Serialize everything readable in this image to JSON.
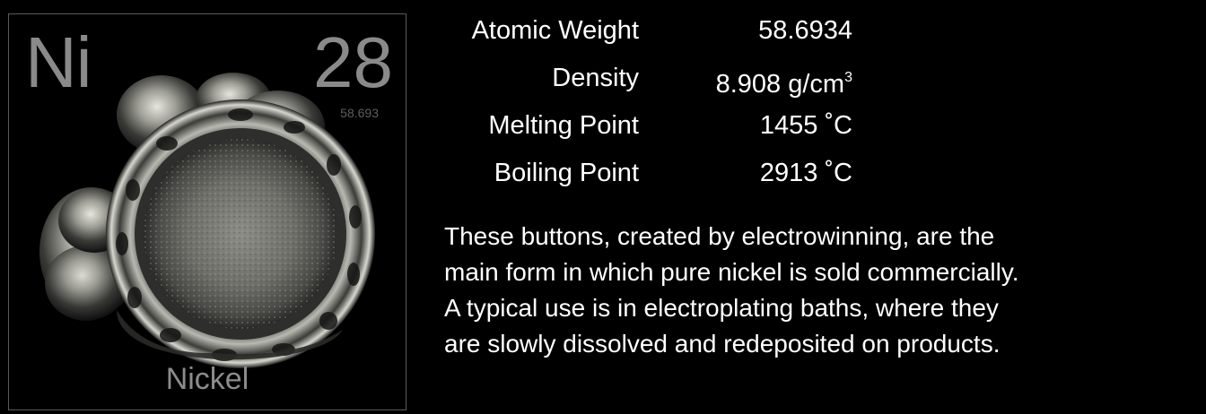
{
  "element": {
    "symbol": "Ni",
    "atomic_number": "28",
    "atomic_weight_short": "58.693",
    "name": "Nickel"
  },
  "properties": [
    {
      "label": "Atomic Weight",
      "value": "58.6934",
      "sup": ""
    },
    {
      "label": "Density",
      "value": "8.908 g/cm",
      "sup": "3"
    },
    {
      "label": "Melting Point",
      "value": "1455 ˚C",
      "sup": ""
    },
    {
      "label": "Boiling Point",
      "value": "2913 ˚C",
      "sup": ""
    }
  ],
  "description_lines": [
    "These buttons, created by electrowinning, are the",
    "main form in which pure nickel is sold commercially.",
    "A typical use is in electroplating baths, where they",
    "are slowly dissolved and redeposited on products."
  ]
}
